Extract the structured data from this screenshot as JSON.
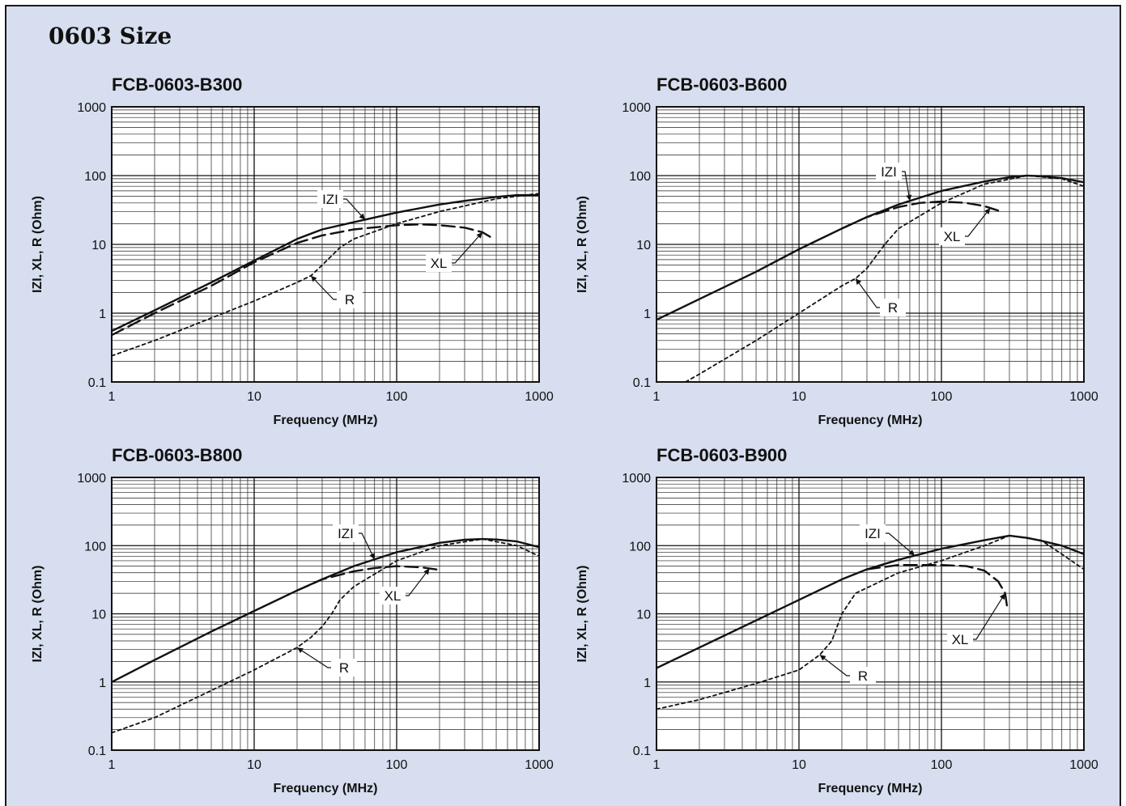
{
  "page": {
    "title": "0603 Size",
    "background": "#d6deef"
  },
  "chart_data": [
    {
      "type": "line",
      "title": "FCB-0603-B300",
      "xlabel": "Frequency (MHz)",
      "ylabel": "IZI, XL, R (Ohm)",
      "xscale": "log",
      "yscale": "log",
      "xlim": [
        1,
        1000
      ],
      "ylim": [
        0.1,
        1000
      ],
      "xticks": [
        "1",
        "10",
        "100",
        "1000"
      ],
      "yticks": [
        "0.1",
        "1",
        "10",
        "100",
        "1000"
      ],
      "grid": true,
      "series": [
        {
          "name": "IZI",
          "style": "solid",
          "points": [
            [
              1,
              0.55
            ],
            [
              2,
              1.1
            ],
            [
              5,
              2.8
            ],
            [
              10,
              5.8
            ],
            [
              20,
              12
            ],
            [
              30,
              16.5
            ],
            [
              50,
              21
            ],
            [
              100,
              29
            ],
            [
              200,
              38
            ],
            [
              300,
              43
            ],
            [
              500,
              49
            ],
            [
              700,
              52
            ],
            [
              1000,
              52
            ]
          ]
        },
        {
          "name": "XL",
          "style": "dashed",
          "points": [
            [
              1,
              0.48
            ],
            [
              2,
              1.0
            ],
            [
              5,
              2.5
            ],
            [
              10,
              5.5
            ],
            [
              20,
              10.5
            ],
            [
              30,
              13.5
            ],
            [
              50,
              16.5
            ],
            [
              100,
              19
            ],
            [
              150,
              19.5
            ],
            [
              200,
              19
            ],
            [
              300,
              17.5
            ],
            [
              400,
              15
            ],
            [
              450,
              13
            ],
            [
              480,
              11.5
            ]
          ]
        },
        {
          "name": "R",
          "style": "dotted",
          "points": [
            [
              1,
              0.24
            ],
            [
              2,
              0.4
            ],
            [
              5,
              0.85
            ],
            [
              10,
              1.5
            ],
            [
              20,
              2.8
            ],
            [
              25,
              3.5
            ],
            [
              30,
              5
            ],
            [
              40,
              9
            ],
            [
              50,
              12
            ],
            [
              100,
              20
            ],
            [
              200,
              30
            ],
            [
              500,
              46
            ],
            [
              1000,
              55
            ]
          ]
        }
      ]
    },
    {
      "type": "line",
      "title": "FCB-0603-B600",
      "xlabel": "Frequency (MHz)",
      "ylabel": "IZI, XL, R (Ohm)",
      "xscale": "log",
      "yscale": "log",
      "xlim": [
        1,
        1000
      ],
      "ylim": [
        0.1,
        1000
      ],
      "xticks": [
        "1",
        "10",
        "100",
        "1000"
      ],
      "yticks": [
        "0.1",
        "1",
        "10",
        "100",
        "1000"
      ],
      "grid": true,
      "series": [
        {
          "name": "IZI",
          "style": "solid",
          "points": [
            [
              1,
              0.8
            ],
            [
              2,
              1.6
            ],
            [
              5,
              4
            ],
            [
              10,
              8.5
            ],
            [
              20,
              17
            ],
            [
              30,
              25
            ],
            [
              50,
              38
            ],
            [
              100,
              60
            ],
            [
              200,
              82
            ],
            [
              300,
              95
            ],
            [
              400,
              100
            ],
            [
              500,
              98
            ],
            [
              700,
              92
            ],
            [
              1000,
              80
            ]
          ]
        },
        {
          "name": "XL",
          "style": "dashed",
          "points": [
            [
              20,
              17
            ],
            [
              30,
              25
            ],
            [
              50,
              35
            ],
            [
              70,
              40
            ],
            [
              100,
              42
            ],
            [
              150,
              40
            ],
            [
              200,
              36
            ],
            [
              250,
              31
            ]
          ]
        },
        {
          "name": "R",
          "style": "dotted",
          "points": [
            [
              1.6,
              0.1
            ],
            [
              2,
              0.13
            ],
            [
              5,
              0.4
            ],
            [
              10,
              1
            ],
            [
              20,
              2.5
            ],
            [
              25,
              3.2
            ],
            [
              30,
              4.5
            ],
            [
              40,
              10
            ],
            [
              50,
              17
            ],
            [
              100,
              40
            ],
            [
              200,
              75
            ],
            [
              400,
              100
            ],
            [
              700,
              90
            ],
            [
              1000,
              70
            ]
          ]
        }
      ]
    },
    {
      "type": "line",
      "title": "FCB-0603-B800",
      "xlabel": "Frequency (MHz)",
      "ylabel": "IZI, XL, R (Ohm)",
      "xscale": "log",
      "yscale": "log",
      "xlim": [
        1,
        1000
      ],
      "ylim": [
        0.1,
        1000
      ],
      "xticks": [
        "1",
        "10",
        "100",
        "1000"
      ],
      "yticks": [
        "0.1",
        "1",
        "10",
        "100",
        "1000"
      ],
      "grid": true,
      "series": [
        {
          "name": "IZI",
          "style": "solid",
          "points": [
            [
              1,
              1.0
            ],
            [
              2,
              2.1
            ],
            [
              5,
              5.5
            ],
            [
              10,
              11
            ],
            [
              20,
              22
            ],
            [
              30,
              32
            ],
            [
              50,
              50
            ],
            [
              100,
              80
            ],
            [
              200,
              110
            ],
            [
              300,
              122
            ],
            [
              400,
              125
            ],
            [
              500,
              123
            ],
            [
              700,
              115
            ],
            [
              1000,
              95
            ]
          ]
        },
        {
          "name": "XL",
          "style": "dashed",
          "points": [
            [
              20,
              22
            ],
            [
              30,
              32
            ],
            [
              50,
              42
            ],
            [
              70,
              47
            ],
            [
              100,
              50
            ],
            [
              150,
              48
            ],
            [
              200,
              44
            ]
          ]
        },
        {
          "name": "R",
          "style": "dotted",
          "points": [
            [
              1,
              0.18
            ],
            [
              2,
              0.3
            ],
            [
              5,
              0.75
            ],
            [
              10,
              1.5
            ],
            [
              20,
              3.2
            ],
            [
              25,
              4.5
            ],
            [
              30,
              6.5
            ],
            [
              35,
              10
            ],
            [
              40,
              16
            ],
            [
              50,
              25
            ],
            [
              100,
              60
            ],
            [
              200,
              100
            ],
            [
              400,
              125
            ],
            [
              700,
              100
            ],
            [
              1000,
              70
            ]
          ]
        }
      ]
    },
    {
      "type": "line",
      "title": "FCB-0603-B900",
      "xlabel": "Frequency (MHz)",
      "ylabel": "IZI, XL, R (Ohm)",
      "xscale": "log",
      "yscale": "log",
      "xlim": [
        1,
        1000
      ],
      "ylim": [
        0.1,
        1000
      ],
      "xticks": [
        "1",
        "10",
        "100",
        "1000"
      ],
      "yticks": [
        "0.1",
        "1",
        "10",
        "100",
        "1000"
      ],
      "grid": true,
      "series": [
        {
          "name": "IZI",
          "style": "solid",
          "points": [
            [
              1,
              1.6
            ],
            [
              2,
              3.2
            ],
            [
              5,
              8
            ],
            [
              10,
              16
            ],
            [
              20,
              32
            ],
            [
              30,
              45
            ],
            [
              50,
              62
            ],
            [
              100,
              90
            ],
            [
              200,
              120
            ],
            [
              300,
              140
            ],
            [
              400,
              130
            ],
            [
              500,
              118
            ],
            [
              700,
              100
            ],
            [
              1000,
              75
            ]
          ]
        },
        {
          "name": "XL",
          "style": "dashed",
          "points": [
            [
              30,
              45
            ],
            [
              50,
              52
            ],
            [
              100,
              52
            ],
            [
              150,
              50
            ],
            [
              200,
              43
            ],
            [
              250,
              30
            ],
            [
              280,
              20
            ],
            [
              290,
              12
            ]
          ]
        },
        {
          "name": "R",
          "style": "dotted",
          "points": [
            [
              1,
              0.4
            ],
            [
              2,
              0.55
            ],
            [
              5,
              0.95
            ],
            [
              10,
              1.5
            ],
            [
              14,
              2.5
            ],
            [
              17,
              4
            ],
            [
              20,
              10
            ],
            [
              25,
              20
            ],
            [
              50,
              40
            ],
            [
              100,
              60
            ],
            [
              200,
              100
            ],
            [
              300,
              140
            ],
            [
              500,
              120
            ],
            [
              700,
              75
            ],
            [
              1000,
              45
            ]
          ]
        }
      ]
    }
  ]
}
